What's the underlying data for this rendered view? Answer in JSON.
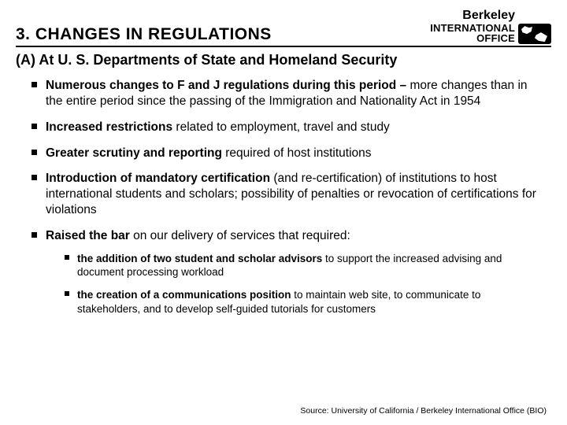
{
  "header": {
    "title": "3. CHANGES IN REGULATIONS",
    "logo": {
      "berkeley": "Berkeley",
      "line1": "INTERNATIONAL",
      "line2": "OFFICE"
    }
  },
  "subtitle": "(A) At U. S. Departments of State and Homeland Security",
  "bullets": [
    {
      "bold": "Numerous changes to F and J regulations during this period –",
      "rest": " more changes than in the entire period since the passing of the Immigration and Nationality Act in 1954"
    },
    {
      "bold": "Increased restrictions",
      "rest": " related to employment, travel and study"
    },
    {
      "bold": "Greater scrutiny and reporting",
      "rest": " required of host institutions"
    },
    {
      "bold": "Introduction of mandatory certification",
      "rest": " (and re-certification) of institutions to host international students and scholars; possibility of penalties or revocation of certifications for violations"
    },
    {
      "bold": "Raised the bar",
      "rest": " on our delivery of services that required:",
      "sub": [
        {
          "bold": "the addition of two student and scholar advisors",
          "rest": " to support the increased advising and document processing workload"
        },
        {
          "bold": "the creation of a communications position",
          "rest": " to maintain web site, to communicate to stakeholders, and to develop self-guided tutorials for customers"
        }
      ]
    }
  ],
  "source": "Source:  University of California / Berkeley International Office (BIO)"
}
